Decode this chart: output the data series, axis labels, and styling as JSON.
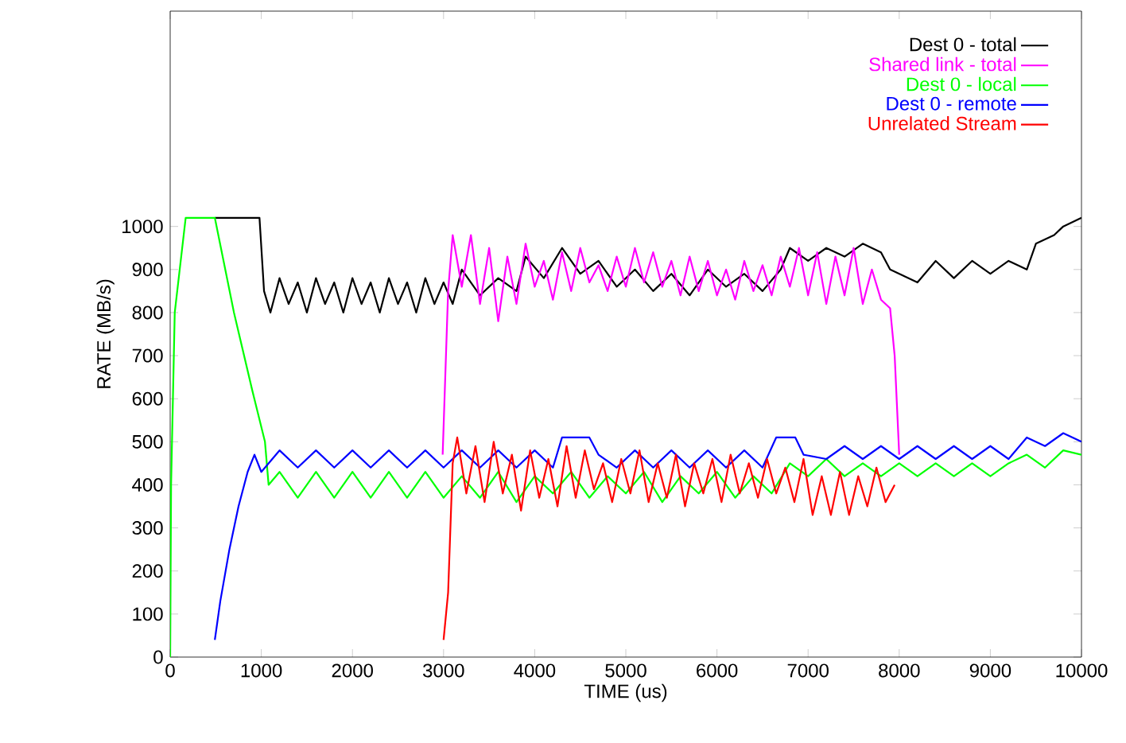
{
  "chart_data": {
    "type": "line",
    "xlabel": "TIME (us)",
    "ylabel": "RATE (MB/s)",
    "xlim": [
      0,
      10000
    ],
    "ylim": [
      0,
      1500
    ],
    "xticks": [
      0,
      1000,
      2000,
      3000,
      4000,
      5000,
      6000,
      7000,
      8000,
      9000,
      10000
    ],
    "yticks": [
      0,
      100,
      200,
      300,
      400,
      500,
      600,
      700,
      800,
      900,
      1000
    ],
    "grid": false,
    "legend": "top right",
    "marker": "none",
    "line_style": "solid",
    "series": [
      {
        "name": "Dest 0 - total",
        "color": "#000000",
        "x": [
          490,
          980,
          1030,
          1100,
          1200,
          1300,
          1400,
          1500,
          1600,
          1700,
          1800,
          1900,
          2000,
          2100,
          2200,
          2300,
          2400,
          2500,
          2600,
          2700,
          2800,
          2900,
          3000,
          3100,
          3200,
          3400,
          3600,
          3800,
          3900,
          4100,
          4300,
          4500,
          4700,
          4900,
          5100,
          5300,
          5500,
          5700,
          5900,
          6100,
          6300,
          6500,
          6700,
          6800,
          7000,
          7200,
          7400,
          7600,
          7800,
          7900,
          8200,
          8400,
          8600,
          8800,
          9000,
          9200,
          9400,
          9500,
          9700,
          9800,
          10000
        ],
        "values": [
          1020,
          1020,
          850,
          800,
          880,
          820,
          870,
          800,
          880,
          820,
          870,
          800,
          880,
          820,
          870,
          800,
          880,
          820,
          870,
          800,
          880,
          820,
          870,
          820,
          900,
          840,
          880,
          850,
          930,
          880,
          950,
          890,
          920,
          860,
          900,
          850,
          890,
          840,
          900,
          860,
          890,
          850,
          900,
          950,
          920,
          950,
          930,
          960,
          940,
          900,
          870,
          920,
          880,
          920,
          890,
          920,
          900,
          960,
          980,
          1000,
          1020
        ]
      },
      {
        "name": "Shared link - total",
        "color": "#ff00ff",
        "x": [
          2990,
          3050,
          3100,
          3200,
          3300,
          3400,
          3500,
          3600,
          3700,
          3800,
          3900,
          4000,
          4100,
          4200,
          4300,
          4400,
          4500,
          4600,
          4700,
          4800,
          4900,
          5000,
          5100,
          5200,
          5300,
          5400,
          5500,
          5600,
          5700,
          5800,
          5900,
          6000,
          6100,
          6200,
          6300,
          6400,
          6500,
          6600,
          6700,
          6800,
          6900,
          7000,
          7100,
          7200,
          7300,
          7400,
          7500,
          7600,
          7700,
          7800,
          7900,
          7950,
          8000
        ],
        "values": [
          470,
          850,
          980,
          860,
          980,
          820,
          950,
          780,
          930,
          820,
          960,
          860,
          920,
          830,
          940,
          850,
          950,
          870,
          910,
          850,
          930,
          860,
          950,
          870,
          940,
          860,
          920,
          840,
          930,
          850,
          920,
          840,
          900,
          830,
          920,
          850,
          910,
          840,
          930,
          860,
          950,
          840,
          940,
          820,
          930,
          840,
          950,
          820,
          900,
          830,
          810,
          700,
          470
        ]
      },
      {
        "name": "Dest 0 - local",
        "color": "#00ff00",
        "x": [
          0,
          10,
          50,
          170,
          490,
          700,
          900,
          1040,
          1080,
          1200,
          1400,
          1600,
          1800,
          2000,
          2200,
          2400,
          2600,
          2800,
          3000,
          3200,
          3400,
          3600,
          3800,
          4000,
          4200,
          4400,
          4600,
          4800,
          5000,
          5200,
          5400,
          5600,
          5800,
          6000,
          6200,
          6400,
          6600,
          6800,
          7000,
          7200,
          7400,
          7600,
          7800,
          8000,
          8200,
          8400,
          8600,
          8800,
          9000,
          9200,
          9400,
          9600,
          9800,
          10000
        ],
        "values": [
          0,
          400,
          800,
          1020,
          1020,
          800,
          620,
          500,
          400,
          430,
          370,
          430,
          370,
          430,
          370,
          430,
          370,
          430,
          370,
          420,
          370,
          430,
          360,
          420,
          380,
          430,
          370,
          420,
          380,
          430,
          360,
          420,
          380,
          430,
          370,
          420,
          380,
          450,
          420,
          460,
          420,
          450,
          420,
          450,
          420,
          450,
          420,
          450,
          420,
          450,
          470,
          440,
          480,
          470
        ]
      },
      {
        "name": "Dest 0 - remote",
        "color": "#0000ff",
        "x": [
          490,
          550,
          650,
          750,
          850,
          925,
          1000,
          1200,
          1400,
          1600,
          1800,
          2000,
          2200,
          2400,
          2600,
          2800,
          3000,
          3200,
          3400,
          3600,
          3800,
          4000,
          4200,
          4300,
          4600,
          4700,
          4900,
          5100,
          5300,
          5500,
          5700,
          5900,
          6100,
          6300,
          6500,
          6650,
          6860,
          6950,
          7200,
          7400,
          7600,
          7800,
          8000,
          8200,
          8400,
          8600,
          8800,
          9000,
          9200,
          9400,
          9600,
          9800,
          10000
        ],
        "values": [
          40,
          130,
          250,
          350,
          430,
          470,
          430,
          480,
          440,
          480,
          440,
          480,
          440,
          480,
          440,
          480,
          440,
          480,
          440,
          480,
          440,
          480,
          440,
          510,
          510,
          470,
          440,
          480,
          440,
          480,
          440,
          480,
          440,
          480,
          440,
          510,
          510,
          470,
          460,
          490,
          460,
          490,
          460,
          490,
          460,
          490,
          460,
          490,
          460,
          510,
          490,
          520,
          500
        ]
      },
      {
        "name": "Unrelated Stream",
        "color": "#ff0000",
        "x": [
          3000,
          3050,
          3100,
          3150,
          3250,
          3350,
          3450,
          3550,
          3650,
          3750,
          3850,
          3950,
          4050,
          4150,
          4250,
          4350,
          4450,
          4550,
          4650,
          4750,
          4850,
          4950,
          5050,
          5150,
          5250,
          5350,
          5450,
          5550,
          5650,
          5750,
          5850,
          5950,
          6050,
          6150,
          6250,
          6350,
          6450,
          6550,
          6650,
          6750,
          6850,
          6950,
          7050,
          7150,
          7250,
          7350,
          7450,
          7550,
          7650,
          7750,
          7850,
          7950
        ],
        "values": [
          40,
          150,
          450,
          510,
          380,
          490,
          360,
          500,
          380,
          470,
          340,
          480,
          370,
          460,
          350,
          490,
          370,
          480,
          390,
          450,
          360,
          460,
          380,
          480,
          360,
          450,
          370,
          470,
          350,
          450,
          380,
          460,
          360,
          470,
          380,
          450,
          370,
          460,
          380,
          440,
          360,
          460,
          330,
          420,
          330,
          430,
          330,
          420,
          350,
          440,
          360,
          400
        ]
      }
    ]
  }
}
